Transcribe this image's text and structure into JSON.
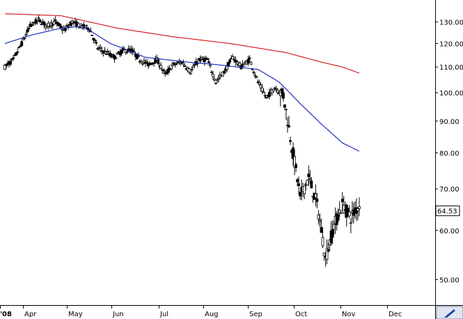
{
  "chart_data": {
    "type": "candlestick",
    "title": "",
    "xlabel": "",
    "ylabel": "",
    "y_scale": "log",
    "ylim": [
      45.5,
      141
    ],
    "y_ticks": [
      50,
      60,
      70,
      80,
      90,
      100,
      110,
      120,
      130
    ],
    "y_tick_labels": [
      "50.00",
      "60.00",
      "70.00",
      "80.00",
      "90.00",
      "100.00",
      "110.00",
      "120.00",
      "130.00"
    ],
    "x_tick_labels": [
      "'08",
      "Apr",
      "May",
      "Jun",
      "Jul",
      "Aug",
      "Sep",
      "Oct",
      "Nov",
      "Dec"
    ],
    "last_price_label": "64.53",
    "grid": false,
    "legend": "none",
    "colors": {
      "bars": "#000000",
      "ma_short": "#1f2fbf",
      "ma_long": "#d42020",
      "frame": "#000000",
      "button": "#dfe6f0"
    },
    "price_anchors": [
      [
        0,
        110
      ],
      [
        6,
        113
      ],
      [
        12,
        120
      ],
      [
        18,
        128
      ],
      [
        24,
        131
      ],
      [
        30,
        128
      ],
      [
        36,
        130
      ],
      [
        42,
        126
      ],
      [
        48,
        130
      ],
      [
        54,
        128
      ],
      [
        60,
        127
      ],
      [
        66,
        118
      ],
      [
        72,
        116
      ],
      [
        78,
        114
      ],
      [
        84,
        117
      ],
      [
        90,
        117
      ],
      [
        96,
        113
      ],
      [
        102,
        111
      ],
      [
        108,
        113
      ],
      [
        114,
        107
      ],
      [
        120,
        111
      ],
      [
        126,
        112
      ],
      [
        132,
        108
      ],
      [
        138,
        113
      ],
      [
        144,
        113
      ],
      [
        150,
        104
      ],
      [
        156,
        108
      ],
      [
        162,
        114
      ],
      [
        168,
        110
      ],
      [
        174,
        113
      ],
      [
        180,
        104
      ],
      [
        186,
        98
      ],
      [
        192,
        102
      ],
      [
        198,
        99
      ],
      [
        204,
        82
      ],
      [
        210,
        68
      ],
      [
        216,
        73
      ],
      [
        222,
        66
      ],
      [
        228,
        54
      ],
      [
        234,
        61
      ],
      [
        240,
        66
      ],
      [
        246,
        63
      ],
      [
        252,
        66
      ]
    ],
    "ma_short": [
      [
        0,
        120
      ],
      [
        20,
        124
      ],
      [
        40,
        127
      ],
      [
        55,
        128
      ],
      [
        75,
        120
      ],
      [
        100,
        114
      ],
      [
        130,
        112
      ],
      [
        150,
        111
      ],
      [
        165,
        110
      ],
      [
        180,
        109
      ],
      [
        195,
        104
      ],
      [
        210,
        96
      ],
      [
        225,
        89
      ],
      [
        240,
        83
      ],
      [
        252,
        80.5
      ]
    ],
    "ma_long": [
      [
        0,
        134
      ],
      [
        40,
        133
      ],
      [
        80,
        127
      ],
      [
        120,
        123
      ],
      [
        160,
        120
      ],
      [
        200,
        116
      ],
      [
        225,
        112
      ],
      [
        240,
        110
      ],
      [
        252,
        107.5
      ]
    ]
  }
}
